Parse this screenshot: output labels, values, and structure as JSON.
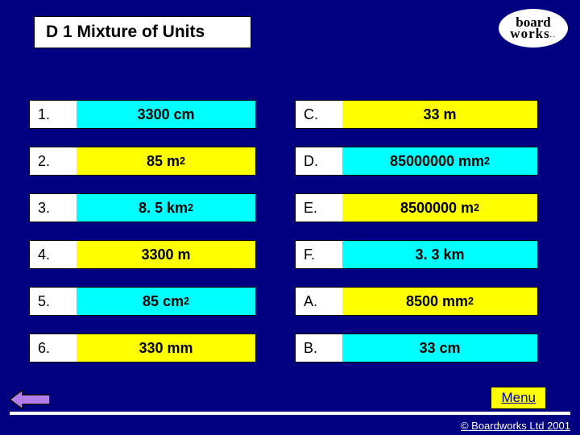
{
  "title": "D 1 Mixture of Units",
  "logo": {
    "line1": "board",
    "line2": "works"
  },
  "colors": {
    "background": "#000080",
    "cyan": "#00ffff",
    "yellow": "#ffff00",
    "white": "#ffffff",
    "black": "#000000"
  },
  "rows": [
    {
      "leftNum": "1.",
      "leftVal": "3300 cm",
      "leftColor": "cyan",
      "rightNum": "C.",
      "rightVal": "33 m",
      "rightColor": "yellow"
    },
    {
      "leftNum": "2.",
      "leftVal": "85 m",
      "leftSup": "2",
      "leftColor": "yellow",
      "rightNum": "D.",
      "rightVal": "85000000 mm",
      "rightSup": "2",
      "rightColor": "cyan"
    },
    {
      "leftNum": "3.",
      "leftVal": "8. 5 km",
      "leftSup": "2",
      "leftColor": "cyan",
      "rightNum": "E.",
      "rightVal": "8500000 m",
      "rightSup": "2",
      "rightColor": "yellow"
    },
    {
      "leftNum": "4.",
      "leftVal": "3300 m",
      "leftColor": "yellow",
      "rightNum": "F.",
      "rightVal": "3. 3 km",
      "rightColor": "cyan"
    },
    {
      "leftNum": "5.",
      "leftVal": "85 cm",
      "leftSup": "2",
      "leftColor": "cyan",
      "rightNum": "A.",
      "rightVal": "8500 mm",
      "rightSup": "2",
      "rightColor": "yellow"
    },
    {
      "leftNum": "6.",
      "leftVal": "330 mm",
      "leftColor": "yellow",
      "rightNum": "B.",
      "rightVal": "33 cm",
      "rightColor": "cyan"
    }
  ],
  "menu_label": "Menu",
  "copyright": "© Boardworks Ltd 2001",
  "arrow": {
    "fill": "#b17de8",
    "stroke": "#000000",
    "width": 50,
    "height": 24
  }
}
